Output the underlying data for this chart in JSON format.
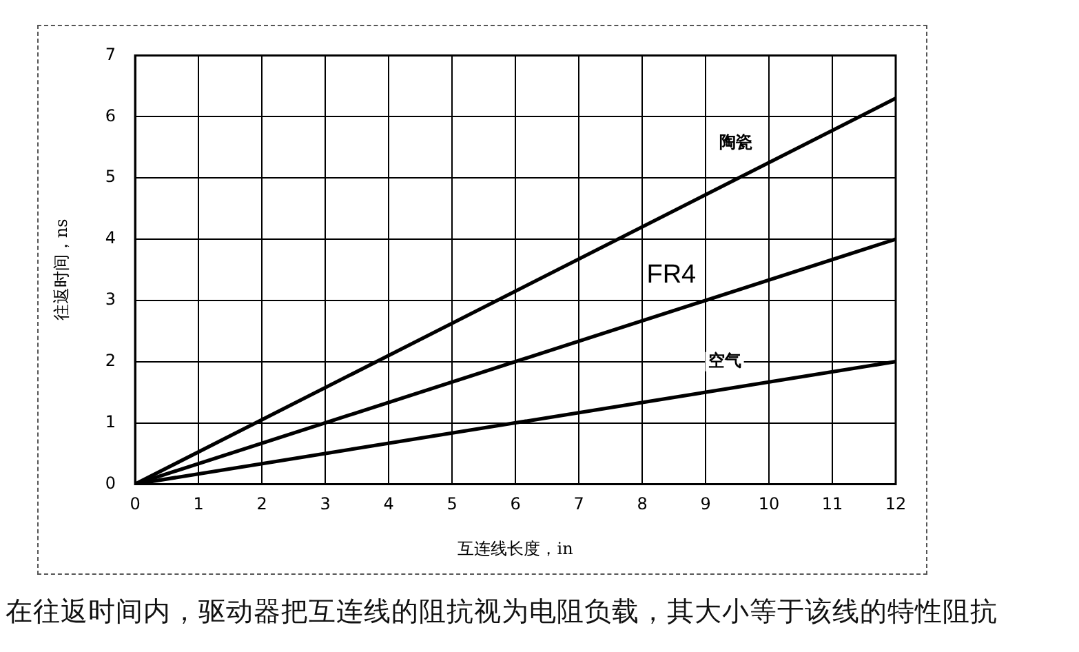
{
  "chart_data": {
    "type": "line",
    "xlabel": "互连线长度，in",
    "ylabel": "往返时间，ns",
    "annotations": [
      "在往返时间内，驱动器把互连线的阻抗视为电阻负载，其大小等于该线的特性阻抗"
    ],
    "x": [
      0,
      12
    ],
    "series": [
      {
        "name": "陶瓷",
        "color": "#000000",
        "values": [
          0,
          6.3
        ]
      },
      {
        "name": "FR4",
        "color": "#000000",
        "values": [
          0,
          4
        ]
      },
      {
        "name": "空气",
        "color": "#000000",
        "values": [
          0,
          2
        ]
      }
    ],
    "xlim": [
      0,
      12
    ],
    "xticks": [
      0,
      1,
      2,
      3,
      4,
      5,
      6,
      7,
      8,
      9,
      10,
      11,
      12
    ],
    "ylim": [
      0,
      7
    ],
    "yticks": [
      0,
      1,
      2,
      3,
      4,
      5,
      6,
      7
    ],
    "grid": true,
    "legend": false,
    "marker": "none",
    "line_style": "solid"
  }
}
